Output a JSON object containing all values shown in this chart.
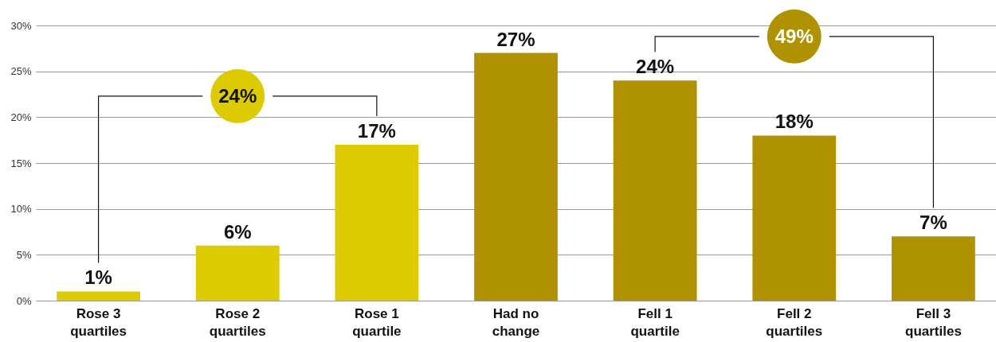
{
  "chart_data": {
    "type": "bar",
    "categories": [
      "Rose 3 quartiles",
      "Rose 2 quartiles",
      "Rose 1 quartile",
      "Had no change",
      "Fell 1 quartile",
      "Fell 2 quartiles",
      "Fell 3 quartiles"
    ],
    "values": [
      1,
      6,
      17,
      27,
      24,
      18,
      7
    ],
    "colors": [
      "#dccb00",
      "#dccb00",
      "#dccb00",
      "#b09200",
      "#b09200",
      "#b09200",
      "#b09200"
    ],
    "value_labels": [
      "1%",
      "6%",
      "17%",
      "27%",
      "24%",
      "18%",
      "7%"
    ],
    "ylim": [
      0,
      30
    ],
    "yticks": [
      {
        "value": 0,
        "label": "0%"
      },
      {
        "value": 5,
        "label": "5%"
      },
      {
        "value": 10,
        "label": "10%"
      },
      {
        "value": 15,
        "label": "15%"
      },
      {
        "value": 20,
        "label": "20%"
      },
      {
        "value": 25,
        "label": "25%"
      },
      {
        "value": 30,
        "label": "30%"
      }
    ],
    "grid": "y",
    "annotations": [
      "24%",
      "49%"
    ]
  }
}
